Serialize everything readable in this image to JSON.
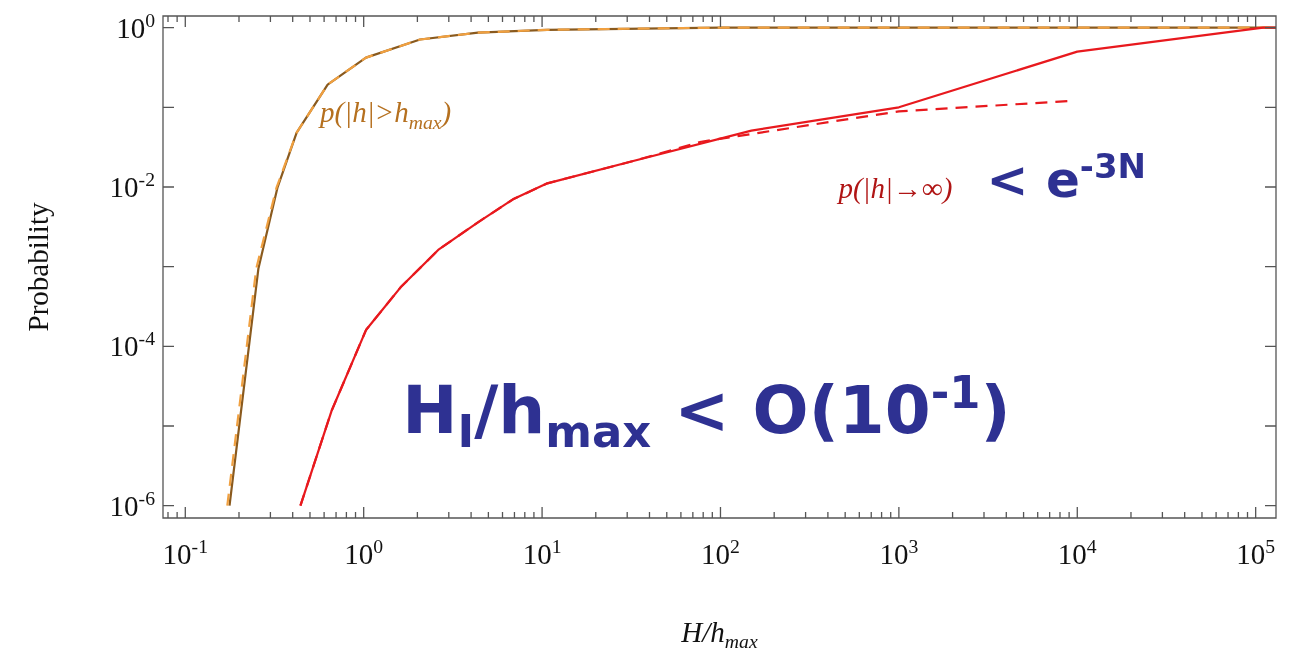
{
  "chart_data": {
    "type": "line",
    "xlabel": "H/h$_{max}$",
    "ylabel": "Probability",
    "log": "xy",
    "grid": false,
    "legend": false,
    "marker": "none",
    "xlim": [
      0.075,
      130000
    ],
    "ylim": [
      7e-07,
      1.4
    ],
    "xticks": [
      {
        "value": 0.08,
        "label": null
      },
      {
        "value": 0.09,
        "label": null
      },
      {
        "value": 0.1,
        "label": "10$^{-1}$"
      },
      {
        "value": 0.2,
        "label": null
      },
      {
        "value": 0.3,
        "label": null
      },
      {
        "value": 0.4,
        "label": null
      },
      {
        "value": 0.5,
        "label": null
      },
      {
        "value": 0.6,
        "label": null
      },
      {
        "value": 0.7,
        "label": null
      },
      {
        "value": 0.8,
        "label": null
      },
      {
        "value": 0.9,
        "label": null
      },
      {
        "value": 1,
        "label": "10$^{0}$"
      },
      {
        "value": 2,
        "label": null
      },
      {
        "value": 3,
        "label": null
      },
      {
        "value": 4,
        "label": null
      },
      {
        "value": 5,
        "label": null
      },
      {
        "value": 6,
        "label": null
      },
      {
        "value": 7,
        "label": null
      },
      {
        "value": 8,
        "label": null
      },
      {
        "value": 9,
        "label": null
      },
      {
        "value": 10,
        "label": "10$^{1}$"
      },
      {
        "value": 20,
        "label": null
      },
      {
        "value": 30,
        "label": null
      },
      {
        "value": 40,
        "label": null
      },
      {
        "value": 50,
        "label": null
      },
      {
        "value": 60,
        "label": null
      },
      {
        "value": 70,
        "label": null
      },
      {
        "value": 80,
        "label": null
      },
      {
        "value": 90,
        "label": null
      },
      {
        "value": 100,
        "label": "10$^{2}$"
      },
      {
        "value": 200,
        "label": null
      },
      {
        "value": 300,
        "label": null
      },
      {
        "value": 400,
        "label": null
      },
      {
        "value": 500,
        "label": null
      },
      {
        "value": 600,
        "label": null
      },
      {
        "value": 700,
        "label": null
      },
      {
        "value": 800,
        "label": null
      },
      {
        "value": 900,
        "label": null
      },
      {
        "value": 1000,
        "label": "10$^{3}$"
      },
      {
        "value": 2000,
        "label": null
      },
      {
        "value": 3000,
        "label": null
      },
      {
        "value": 4000,
        "label": null
      },
      {
        "value": 5000,
        "label": null
      },
      {
        "value": 6000,
        "label": null
      },
      {
        "value": 7000,
        "label": null
      },
      {
        "value": 8000,
        "label": null
      },
      {
        "value": 9000,
        "label": null
      },
      {
        "value": 10000,
        "label": "10$^{4}$"
      },
      {
        "value": 20000,
        "label": null
      },
      {
        "value": 30000,
        "label": null
      },
      {
        "value": 40000,
        "label": null
      },
      {
        "value": 50000,
        "label": null
      },
      {
        "value": 60000,
        "label": null
      },
      {
        "value": 70000,
        "label": null
      },
      {
        "value": 80000,
        "label": null
      },
      {
        "value": 90000,
        "label": null
      },
      {
        "value": 100000,
        "label": "10$^{5}$"
      }
    ],
    "yticks": [
      {
        "value": 1,
        "label": "10$^{0}$"
      },
      {
        "value": 0.1,
        "label": null
      },
      {
        "value": 0.01,
        "label": "10$^{-2}$"
      },
      {
        "value": 0.001,
        "label": null
      },
      {
        "value": 0.0001,
        "label": "10$^{-4}$"
      },
      {
        "value": 1e-05,
        "label": null
      },
      {
        "value": 1e-06,
        "label": "10$^{-6}$"
      }
    ],
    "series": [
      {
        "color": "#8a5a1e",
        "line_style": "solid",
        "x": [
          0.177,
          0.257,
          0.329,
          0.421,
          0.628,
          1.03,
          2.07,
          4.37,
          10.7,
          100,
          1000,
          10000,
          130000
        ],
        "values": [
          1e-06,
          0.00095,
          0.0099,
          0.048,
          0.193,
          0.42,
          0.71,
          0.865,
          0.94,
          1,
          1,
          1,
          1
        ]
      },
      {
        "color": "#f0a040",
        "line_style": "dashed",
        "x": [
          0.172,
          0.25,
          0.325,
          0.421,
          0.628,
          1.03,
          2.07,
          4.37,
          10.7,
          100,
          1000,
          10000,
          130000
        ],
        "values": [
          1e-06,
          0.00095,
          0.0099,
          0.048,
          0.193,
          0.42,
          0.71,
          0.865,
          0.94,
          1,
          1,
          1,
          1
        ]
      },
      {
        "color": "#e8191e",
        "line_style": "solid",
        "x": [
          0.442,
          0.66,
          1.03,
          1.61,
          2.64,
          4.37,
          6.87,
          10.7,
          32,
          149,
          1000,
          10000,
          110000,
          130000
        ],
        "values": [
          1e-06,
          1.54e-05,
          0.00016,
          0.00055,
          0.00165,
          0.0036,
          0.007,
          0.0111,
          0.021,
          0.051,
          0.1,
          0.5,
          1,
          1
        ]
      },
      {
        "color": "#e8191e",
        "line_style": "dashed",
        "x": [
          0.442,
          0.66,
          1.03,
          1.61,
          2.64,
          4.37,
          6.87,
          10.7,
          32,
          78,
          1000,
          9000
        ],
        "values": [
          1e-06,
          1.54e-05,
          0.00016,
          0.00055,
          0.00165,
          0.0036,
          0.007,
          0.0111,
          0.021,
          0.037,
          0.089,
          0.12
        ]
      }
    ],
    "annotations": [
      "p(|h|>h$_{max}$)",
      "p(|h|→∞)",
      "< e$^{-3N}$",
      "H$_{I}$/h$_{max}$ < O(10$^{-1}$)"
    ]
  }
}
